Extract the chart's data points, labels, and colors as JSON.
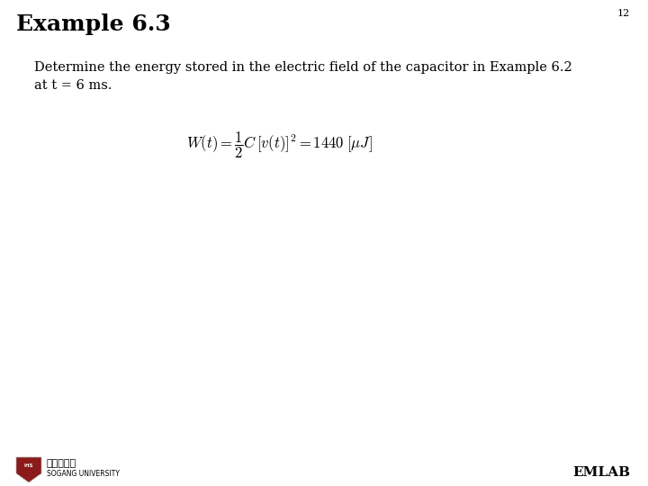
{
  "title": "Example 6.3",
  "page_number": "12",
  "body_text_line1": "Determine the energy stored in the electric field of the capacitor in Example 6.2",
  "body_text_line2": "at t = 6 ms.",
  "emlab_text": "EMLAB",
  "bg_color": "#ffffff",
  "title_color": "#000000",
  "body_color": "#000000",
  "title_fontsize": 18,
  "body_fontsize": 10.5,
  "formula_fontsize": 12,
  "page_num_fontsize": 8,
  "emlab_fontsize": 11
}
